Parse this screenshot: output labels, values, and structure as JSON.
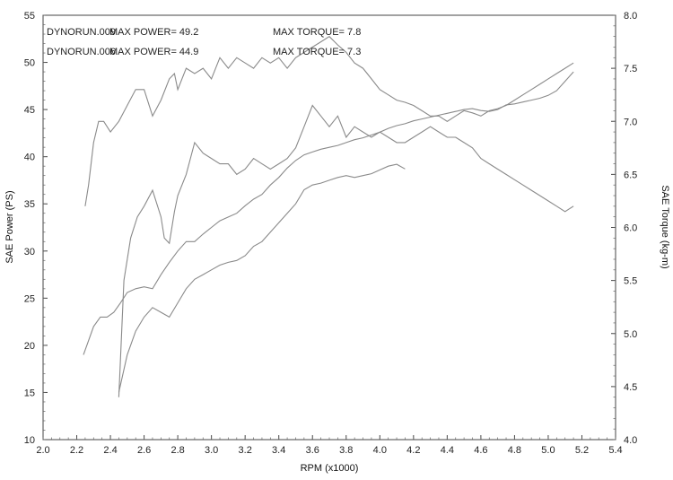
{
  "chart_data": {
    "type": "line",
    "title": "",
    "xlabel": "RPM (x1000)",
    "ylabel": "SAE Power  (PS)",
    "y2label": "SAE Torque  (kg-m)",
    "xlim": [
      2.0,
      5.4
    ],
    "ylim": [
      10,
      55
    ],
    "y2lim": [
      4.0,
      8.0
    ],
    "xticks": [
      "2.0",
      "2.2",
      "2.4",
      "2.6",
      "2.8",
      "3.0",
      "3.2",
      "3.4",
      "3.6",
      "3.8",
      "4.0",
      "4.2",
      "4.4",
      "4.6",
      "4.8",
      "5.0",
      "5.2",
      "5.4"
    ],
    "yticks": [
      "10",
      "15",
      "20",
      "25",
      "30",
      "35",
      "40",
      "45",
      "50",
      "55"
    ],
    "y2ticks": [
      "4.0",
      "4.5",
      "5.0",
      "5.5",
      "6.0",
      "6.5",
      "7.0",
      "7.5",
      "8.0"
    ],
    "grid": false,
    "annotations": [
      {
        "run": "DYNORUN.009",
        "power_text": "MAX POWER= 49.2",
        "torque_text": "MAX TORQUE= 7.8"
      },
      {
        "run": "DYNORUN.006",
        "power_text": "MAX POWER= 44.9",
        "torque_text": "MAX TORQUE= 7.3"
      }
    ],
    "series": [
      {
        "axis": "left",
        "color": "#8a8a8a",
        "x": [
          2.24,
          2.27,
          2.3,
          2.34,
          2.38,
          2.42,
          2.46,
          2.5,
          2.55,
          2.6,
          2.65,
          2.7,
          2.75,
          2.8,
          2.85,
          2.9,
          2.95,
          3.0,
          3.05,
          3.1,
          3.15,
          3.2,
          3.25,
          3.3,
          3.35,
          3.4,
          3.45,
          3.5,
          3.55,
          3.6,
          3.65,
          3.7,
          3.75,
          3.8,
          3.85,
          3.9,
          3.95,
          4.0,
          4.05,
          4.1,
          4.15,
          4.2,
          4.25,
          4.3,
          4.35,
          4.4,
          4.45,
          4.5,
          4.55,
          4.6,
          4.65,
          4.7,
          4.75,
          4.8,
          4.85,
          4.9,
          4.95,
          5.0,
          5.05,
          5.1,
          5.15
        ],
        "y": [
          19,
          20.5,
          22,
          23,
          23,
          23.5,
          24.5,
          25.6,
          26,
          26.2,
          26,
          27.5,
          28.8,
          30,
          31,
          31,
          31.8,
          32.5,
          33.2,
          33.6,
          34,
          34.8,
          35.5,
          36,
          37,
          37.8,
          38.8,
          39.6,
          40.2,
          40.5,
          40.8,
          41,
          41.2,
          41.5,
          41.8,
          42,
          42.3,
          42.6,
          43,
          43.3,
          43.5,
          43.8,
          44,
          44.2,
          44.4,
          44.6,
          44.8,
          45,
          45.1,
          44.9,
          44.8,
          45,
          45.5,
          45.6,
          45.8,
          46,
          46.2,
          46.5,
          47,
          48,
          49
        ]
      },
      {
        "axis": "left",
        "color": "#8a8a8a",
        "x": [
          2.45,
          2.5,
          2.55,
          2.6,
          2.65,
          2.7,
          2.75,
          2.8,
          2.85,
          2.9,
          2.95,
          3.0,
          3.05,
          3.1,
          3.15,
          3.2,
          3.25,
          3.3,
          3.35,
          3.4,
          3.45,
          3.5,
          3.55,
          3.6,
          3.65,
          3.7,
          3.75,
          3.8,
          3.85,
          3.9,
          3.95,
          4.0,
          4.05,
          4.1,
          4.15
        ],
        "y": [
          15,
          19,
          21.5,
          23,
          24,
          23.5,
          23,
          24.5,
          26,
          27,
          27.5,
          28,
          28.5,
          28.8,
          29,
          29.5,
          30.5,
          31,
          32,
          33,
          34,
          35,
          36.5,
          37,
          37.2,
          37.5,
          37.8,
          38,
          37.8,
          38,
          38.2,
          38.6,
          39,
          39.2,
          38.7
        ]
      },
      {
        "axis": "right",
        "color": "#8a8a8a",
        "x": [
          2.25,
          2.27,
          2.3,
          2.33,
          2.36,
          2.4,
          2.45,
          2.5,
          2.55,
          2.6,
          2.65,
          2.7,
          2.75,
          2.78,
          2.8,
          2.85,
          2.9,
          2.95,
          3.0,
          3.05,
          3.1,
          3.15,
          3.2,
          3.25,
          3.3,
          3.35,
          3.4,
          3.45,
          3.5,
          3.55,
          3.6,
          3.65,
          3.7,
          3.75,
          3.8,
          3.85,
          3.9,
          3.95,
          4.0,
          4.05,
          4.1,
          4.15,
          4.2,
          4.25,
          4.3,
          4.35,
          4.4,
          4.45,
          4.5,
          4.55,
          4.6,
          4.65,
          4.7,
          4.75,
          4.8,
          4.85,
          4.9,
          4.95,
          5.0,
          5.05,
          5.1,
          5.15
        ],
        "y": [
          6.2,
          6.4,
          6.8,
          7.0,
          7.0,
          6.9,
          7.0,
          7.15,
          7.3,
          7.3,
          7.05,
          7.2,
          7.4,
          7.45,
          7.3,
          7.5,
          7.45,
          7.5,
          7.4,
          7.6,
          7.5,
          7.6,
          7.55,
          7.5,
          7.6,
          7.55,
          7.6,
          7.5,
          7.6,
          7.65,
          7.7,
          7.75,
          7.8,
          7.72,
          7.65,
          7.55,
          7.5,
          7.4,
          7.3,
          7.25,
          7.2,
          7.18,
          7.15,
          7.1,
          7.05,
          7.05,
          7.0,
          7.05,
          7.1,
          7.08,
          7.05,
          7.1,
          7.12,
          7.15,
          7.2,
          7.25,
          7.3,
          7.35,
          7.4,
          7.45,
          7.5,
          7.55
        ]
      },
      {
        "axis": "right",
        "color": "#8a8a8a",
        "x": [
          2.45,
          2.48,
          2.52,
          2.56,
          2.6,
          2.65,
          2.7,
          2.72,
          2.75,
          2.78,
          2.8,
          2.85,
          2.9,
          2.95,
          3.0,
          3.05,
          3.1,
          3.15,
          3.2,
          3.25,
          3.3,
          3.35,
          3.4,
          3.45,
          3.5,
          3.55,
          3.6,
          3.65,
          3.7,
          3.75,
          3.8,
          3.85,
          3.9,
          3.95,
          4.0,
          4.05,
          4.1,
          4.15,
          4.2,
          4.25,
          4.3,
          4.35,
          4.4,
          4.45,
          4.5,
          4.55,
          4.6,
          4.65,
          4.7,
          4.75,
          4.8,
          4.85,
          4.9,
          4.95,
          5.0,
          5.05,
          5.1,
          5.15
        ],
        "y": [
          4.4,
          5.5,
          5.9,
          6.1,
          6.2,
          6.35,
          6.1,
          5.9,
          5.85,
          6.15,
          6.3,
          6.5,
          6.8,
          6.7,
          6.65,
          6.6,
          6.6,
          6.5,
          6.55,
          6.65,
          6.6,
          6.55,
          6.6,
          6.65,
          6.75,
          6.95,
          7.15,
          7.05,
          6.95,
          7.05,
          6.85,
          6.95,
          6.9,
          6.85,
          6.9,
          6.85,
          6.8,
          6.8,
          6.85,
          6.9,
          6.95,
          6.9,
          6.85,
          6.85,
          6.8,
          6.75,
          6.65,
          6.6,
          6.55,
          6.5,
          6.45,
          6.4,
          6.35,
          6.3,
          6.25,
          6.2,
          6.15,
          6.2
        ]
      }
    ]
  }
}
